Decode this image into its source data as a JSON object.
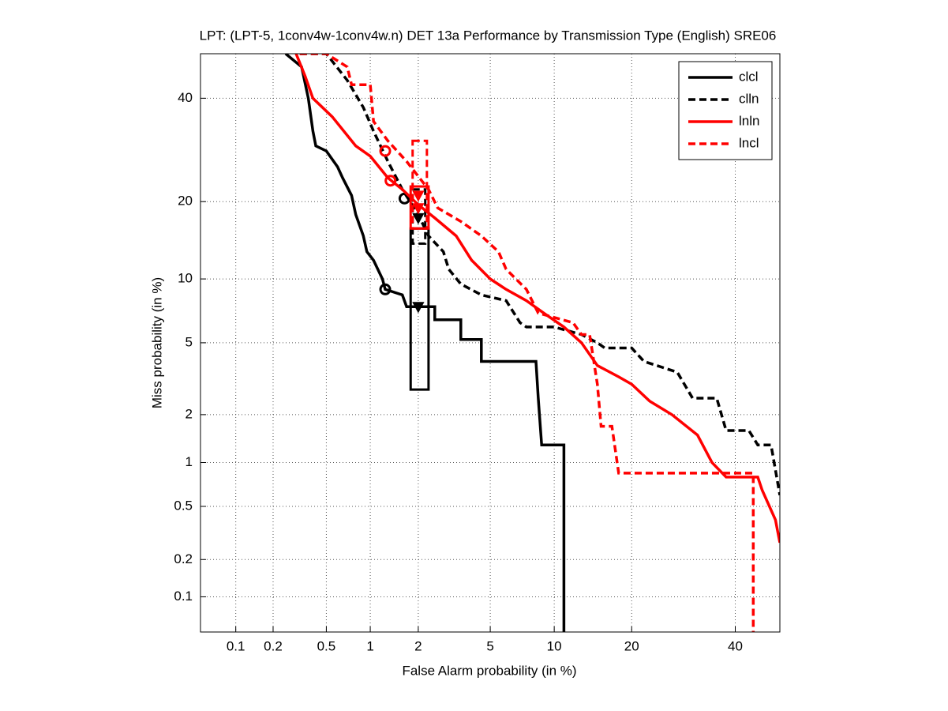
{
  "chart_data": {
    "type": "det",
    "title": "LPT: (LPT-5, 1conv4w-1conv4w.n) DET 13a Performance by Transmission Type (English) SRE06",
    "x_label": "False Alarm probability (in %)",
    "y_label": "Miss probability (in %)",
    "xlim": [
      0.05,
      50
    ],
    "ylim": [
      0.05,
      50
    ],
    "xticks": [
      0.1,
      0.2,
      0.5,
      1,
      2,
      5,
      10,
      20,
      40
    ],
    "yticks": [
      0.1,
      0.2,
      0.5,
      1,
      2,
      5,
      10,
      20,
      40
    ],
    "grid": true,
    "legend": "upper right",
    "series": [
      {
        "name": "clcl",
        "color": "#000000",
        "dashed": false,
        "x": [
          0.25,
          0.33,
          0.37,
          0.4,
          0.42,
          0.5,
          0.6,
          0.65,
          0.75,
          0.8,
          0.9,
          0.95,
          1.05,
          1.2,
          1.25,
          1.6,
          1.7,
          2.5,
          2.5,
          3.5,
          3.5,
          4.5,
          4.5,
          8.3,
          8.5,
          8.8,
          11,
          11
        ],
        "values": [
          50,
          47,
          40,
          33,
          30,
          29,
          26,
          24,
          21,
          18,
          15,
          13,
          12,
          10,
          9,
          8.5,
          7.5,
          7.5,
          6.5,
          6.5,
          5.2,
          5.2,
          4,
          4,
          2.5,
          1.3,
          1.3,
          0.05
        ],
        "min_point": [
          1.25,
          9
        ],
        "act_point": [
          2,
          7.5
        ],
        "box_x": [
          1.8,
          2.3
        ],
        "box_y": [
          2.8,
          16
        ]
      },
      {
        "name": "clln",
        "color": "#000000",
        "dashed": true,
        "x": [
          0.32,
          0.5,
          0.7,
          0.9,
          1.05,
          1.3,
          1.6,
          2,
          2.3,
          2.8,
          3,
          3.5,
          4.5,
          6,
          7,
          7.5,
          10,
          13,
          15,
          16,
          20,
          22,
          28,
          31,
          36,
          38,
          43,
          45,
          48,
          50
        ],
        "values": [
          50,
          50,
          44,
          38,
          33,
          27,
          22,
          18,
          15,
          13,
          11,
          9.5,
          8.5,
          8,
          6.3,
          6,
          6,
          5.5,
          5,
          4.7,
          4.7,
          4,
          3.5,
          2.5,
          2.5,
          1.6,
          1.6,
          1.3,
          1.3,
          0.6
        ],
        "min_point": [
          1.65,
          20.5
        ],
        "act_point": [
          2,
          17.5
        ],
        "box_x": [
          1.85,
          2.2
        ],
        "box_y": [
          14,
          22
        ]
      },
      {
        "name": "lnln",
        "color": "#ff0000",
        "dashed": false,
        "x": [
          0.3,
          0.35,
          0.4,
          0.55,
          0.8,
          1,
          1.3,
          1.6,
          2,
          2.5,
          3.3,
          4,
          5,
          6,
          7.5,
          9,
          11,
          13,
          15,
          18,
          20,
          23,
          27,
          32,
          35,
          38,
          45,
          46,
          49,
          50
        ],
        "values": [
          50,
          45,
          40,
          36,
          30,
          28,
          24,
          22,
          19.5,
          17.5,
          15,
          12,
          10,
          9,
          8,
          7,
          6,
          5,
          3.8,
          3.3,
          3,
          2.4,
          2,
          1.5,
          1,
          0.8,
          0.8,
          0.65,
          0.4,
          0.27
        ],
        "min_point": [
          1.35,
          23.5
        ],
        "act_point": [
          2,
          19
        ],
        "box_x": [
          1.8,
          2.3
        ],
        "box_y": [
          16,
          22.5
        ]
      },
      {
        "name": "lncl",
        "color": "#ff0000",
        "dashed": true,
        "x": [
          0.32,
          0.5,
          0.7,
          0.75,
          1,
          1.05,
          1.3,
          1.7,
          2.3,
          2.6,
          3.5,
          4.5,
          5.5,
          6,
          7.5,
          8.5,
          12,
          13,
          14,
          15,
          15.5,
          17,
          18,
          44,
          44
        ],
        "values": [
          50,
          50,
          47,
          43,
          43,
          35,
          31,
          27,
          22,
          19,
          17,
          15,
          13,
          11,
          9,
          7,
          6.3,
          5.5,
          5.5,
          3,
          1.7,
          1.7,
          0.85,
          0.85,
          0.05
        ],
        "min_point": [
          1.25,
          29
        ],
        "act_point": [
          2,
          21
        ],
        "box_x": [
          1.85,
          2.25
        ],
        "box_y": [
          16,
          31
        ]
      }
    ]
  }
}
